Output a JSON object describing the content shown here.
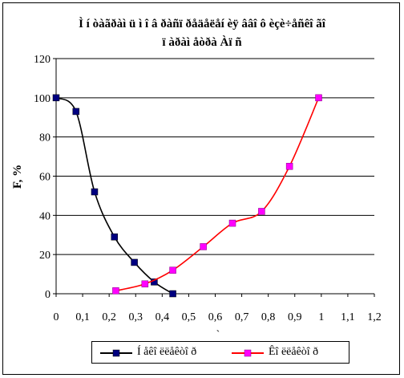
{
  "chart_data": {
    "type": "line",
    "title": [
      "Ì í òàãðàì ü ì î â ðàñï ðåäåëåí èÿ ââî ô èçè÷åñêî ãî",
      "ï àðàì åòðà Àï ñ"
    ],
    "ylabel": "F, %",
    "xlabel": "`",
    "xlim": [
      0,
      1.2
    ],
    "ylim": [
      0,
      120
    ],
    "x_ticks": [
      "0",
      "0,1",
      "0,2",
      "0,3",
      "0,4",
      "0,5",
      "0,6",
      "0,7",
      "0,8",
      "0,9",
      "1",
      "1,1",
      "1,2"
    ],
    "y_ticks": [
      "0",
      "20",
      "40",
      "60",
      "80",
      "100",
      "120"
    ],
    "grid": "horizontal",
    "legend_position": "bottom",
    "series": [
      {
        "name": "Í åêî ëëåêòî ð",
        "color": "#000080",
        "line_color": "#000000",
        "marker": "square",
        "points": [
          [
            0.0,
            100
          ],
          [
            0.075,
            93
          ],
          [
            0.145,
            52
          ],
          [
            0.22,
            29
          ],
          [
            0.295,
            16
          ],
          [
            0.37,
            6
          ],
          [
            0.44,
            0
          ]
        ]
      },
      {
        "name": "Êî ëëåêòî ð",
        "color": "#ff00ff",
        "line_color": "#ff0000",
        "marker": "square",
        "points": [
          [
            0.225,
            1.5
          ],
          [
            0.335,
            5
          ],
          [
            0.44,
            12
          ],
          [
            0.555,
            24
          ],
          [
            0.665,
            36
          ],
          [
            0.775,
            42
          ],
          [
            0.88,
            65
          ],
          [
            0.99,
            100
          ]
        ]
      }
    ]
  }
}
